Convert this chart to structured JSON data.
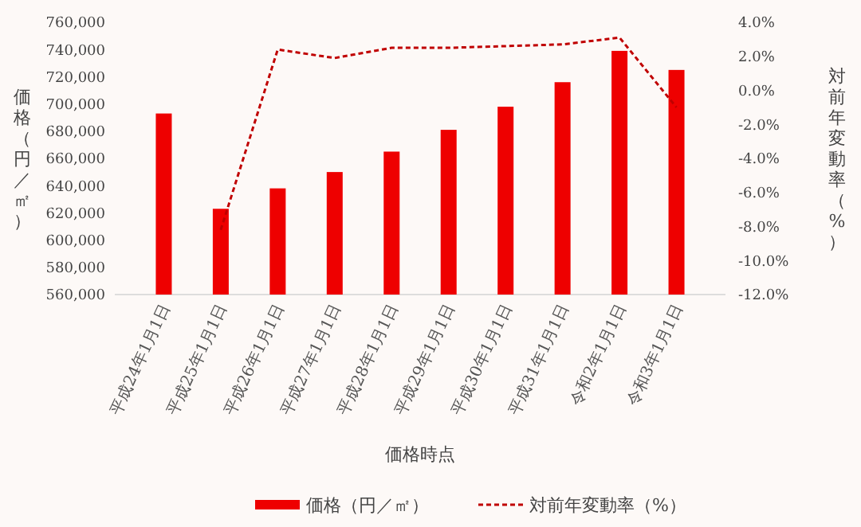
{
  "chart_data": {
    "type": "bar",
    "xlabel": "価格時点",
    "ylabel": "価格（円／㎡）",
    "y2label": "対前年変動率（%）",
    "categories": [
      "平成24年1月1日",
      "平成25年1月1日",
      "平成26年1月1日",
      "平成27年1月1日",
      "平成28年1月1日",
      "平成29年1月1日",
      "平成30年1月1日",
      "平成31年1月1日",
      "令和2年1月1日",
      "令和3年1月1日"
    ],
    "series": [
      {
        "name": "価格（円／㎡）",
        "color": "#ee0000",
        "values": [
          693000,
          623000,
          638000,
          650000,
          665000,
          681000,
          698000,
          716000,
          739000,
          725000
        ]
      },
      {
        "name": "対前年変動率（%）",
        "type": "line",
        "axis": "y2",
        "color": "#c00000",
        "line_style": "dashed",
        "marker": "none",
        "values": [
          null,
          -8.2,
          2.4,
          1.9,
          2.5,
          2.5,
          2.6,
          2.7,
          3.1,
          -1.0
        ]
      }
    ],
    "ylim": [
      560000,
      760000
    ],
    "yticks": [
      {
        "value": 560000,
        "label": "560,000"
      },
      {
        "value": 580000,
        "label": "580,000"
      },
      {
        "value": 600000,
        "label": "600,000"
      },
      {
        "value": 620000,
        "label": "620,000"
      },
      {
        "value": 640000,
        "label": "640,000"
      },
      {
        "value": 660000,
        "label": "660,000"
      },
      {
        "value": 680000,
        "label": "680,000"
      },
      {
        "value": 700000,
        "label": "700,000"
      },
      {
        "value": 720000,
        "label": "720,000"
      },
      {
        "value": 740000,
        "label": "740,000"
      },
      {
        "value": 760000,
        "label": "760,000"
      }
    ],
    "y2lim": [
      -12,
      4
    ],
    "y2ticks": [
      {
        "value": -12,
        "label": "-12.0%"
      },
      {
        "value": -10,
        "label": "-10.0%"
      },
      {
        "value": -8,
        "label": "-8.0%"
      },
      {
        "value": -6,
        "label": "-6.0%"
      },
      {
        "value": -4,
        "label": "-4.0%"
      },
      {
        "value": -2,
        "label": "-2.0%"
      },
      {
        "value": 0,
        "label": "0.0%"
      },
      {
        "value": 2,
        "label": "2.0%"
      },
      {
        "value": 4,
        "label": "4.0%"
      }
    ],
    "grid": false,
    "legend": "bottom"
  }
}
